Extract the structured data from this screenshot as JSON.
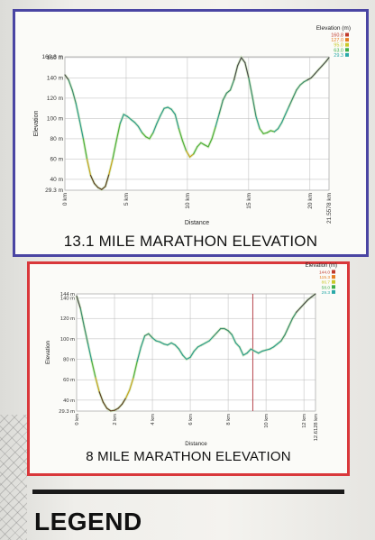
{
  "chart_data": [
    {
      "type": "line",
      "title": "13.1 MILE MARATHON ELEVATION",
      "xlabel": "Distance",
      "ylabel": "Elevation",
      "legend_title": "Elevation (m)",
      "legend_entries": [
        "160.8",
        "127.0",
        "95.0",
        "63.0",
        "29.3"
      ],
      "legend_colors": [
        "#c0392b",
        "#e67e22",
        "#c9c92a",
        "#3fae49",
        "#2aa9a9"
      ],
      "ylim": [
        29.3,
        160.8
      ],
      "xlim": [
        0,
        21.5578
      ],
      "yticks": [
        {
          "v": 29.3,
          "label": "29.3 m"
        },
        {
          "v": 40,
          "label": "40 m"
        },
        {
          "v": 60,
          "label": "60 m"
        },
        {
          "v": 80,
          "label": "80 m"
        },
        {
          "v": 100,
          "label": "100 m"
        },
        {
          "v": 120,
          "label": "120 m"
        },
        {
          "v": 140,
          "label": "140 m"
        },
        {
          "v": 160,
          "label": "160 m"
        },
        {
          "v": 160.8,
          "label": "160.8 m"
        }
      ],
      "xticks": [
        {
          "v": 0,
          "label": "0 km"
        },
        {
          "v": 5,
          "label": "5 km"
        },
        {
          "v": 10,
          "label": "10 km"
        },
        {
          "v": 15,
          "label": "15 km"
        },
        {
          "v": 20,
          "label": "20 km"
        },
        {
          "v": 21.5578,
          "label": "21.5578 km"
        }
      ],
      "x": [
        0,
        0.3,
        0.6,
        0.9,
        1.2,
        1.5,
        1.8,
        2.1,
        2.4,
        2.7,
        3.0,
        3.3,
        3.6,
        3.9,
        4.2,
        4.5,
        4.8,
        5.1,
        5.4,
        5.7,
        6.0,
        6.3,
        6.6,
        6.9,
        7.2,
        7.5,
        7.8,
        8.1,
        8.4,
        8.7,
        9.0,
        9.3,
        9.6,
        9.9,
        10.2,
        10.5,
        10.8,
        11.1,
        11.4,
        11.7,
        12.0,
        12.3,
        12.6,
        12.9,
        13.2,
        13.5,
        13.8,
        14.1,
        14.4,
        14.7,
        15.0,
        15.3,
        15.6,
        15.9,
        16.2,
        16.5,
        16.8,
        17.1,
        17.4,
        17.7,
        18.0,
        18.3,
        18.6,
        18.9,
        19.2,
        19.5,
        19.8,
        20.1,
        20.4,
        20.7,
        21.0,
        21.3,
        21.5578
      ],
      "y": [
        143,
        138,
        128,
        115,
        98,
        80,
        60,
        44,
        36,
        32,
        30,
        33,
        45,
        60,
        78,
        95,
        104,
        102,
        99,
        96,
        92,
        86,
        82,
        80,
        86,
        95,
        103,
        110,
        111,
        109,
        104,
        90,
        78,
        68,
        62,
        65,
        72,
        76,
        74,
        72,
        80,
        92,
        105,
        118,
        125,
        128,
        138,
        152,
        160,
        155,
        140,
        122,
        102,
        90,
        85,
        86,
        88,
        87,
        90,
        96,
        104,
        112,
        120,
        128,
        133,
        136,
        138,
        140,
        144,
        148,
        152,
        156,
        160
      ],
      "marker_x": null
    },
    {
      "type": "line",
      "title": "8 MILE MARATHON ELEVATION",
      "xlabel": "Distance",
      "ylabel": "Elevation",
      "legend_title": "Elevation (m)",
      "legend_entries": [
        "144.0",
        "115.3",
        "86.7",
        "58.0",
        "29.3"
      ],
      "legend_colors": [
        "#c0392b",
        "#e67e22",
        "#c9c92a",
        "#3fae49",
        "#2aa9a9"
      ],
      "ylim": [
        29.3,
        144
      ],
      "xlim": [
        0,
        12.6128
      ],
      "yticks": [
        {
          "v": 29.3,
          "label": "29.3 m"
        },
        {
          "v": 40,
          "label": "40 m"
        },
        {
          "v": 60,
          "label": "60 m"
        },
        {
          "v": 80,
          "label": "80 m"
        },
        {
          "v": 100,
          "label": "100 m"
        },
        {
          "v": 120,
          "label": "120 m"
        },
        {
          "v": 140,
          "label": "140 m"
        },
        {
          "v": 144,
          "label": "144 m"
        }
      ],
      "xticks": [
        {
          "v": 0,
          "label": "0 km"
        },
        {
          "v": 2,
          "label": "2 km"
        },
        {
          "v": 4,
          "label": "4 km"
        },
        {
          "v": 6,
          "label": "6 km"
        },
        {
          "v": 8,
          "label": "8 km"
        },
        {
          "v": 10,
          "label": "10 km"
        },
        {
          "v": 12,
          "label": "12 km"
        },
        {
          "v": 12.6128,
          "label": "12.6128 km"
        }
      ],
      "x": [
        0,
        0.2,
        0.4,
        0.6,
        0.8,
        1.0,
        1.2,
        1.4,
        1.6,
        1.8,
        2.0,
        2.2,
        2.4,
        2.6,
        2.8,
        3.0,
        3.2,
        3.4,
        3.6,
        3.8,
        4.0,
        4.2,
        4.4,
        4.6,
        4.8,
        5.0,
        5.2,
        5.4,
        5.6,
        5.8,
        6.0,
        6.2,
        6.4,
        6.6,
        6.8,
        7.0,
        7.2,
        7.4,
        7.6,
        7.8,
        8.0,
        8.2,
        8.4,
        8.6,
        8.8,
        9.0,
        9.2,
        9.4,
        9.6,
        9.8,
        10.0,
        10.2,
        10.4,
        10.6,
        10.8,
        11.0,
        11.2,
        11.4,
        11.6,
        11.8,
        12.0,
        12.2,
        12.4,
        12.6128
      ],
      "y": [
        142,
        130,
        112,
        95,
        78,
        62,
        48,
        38,
        32,
        29.5,
        30,
        32,
        36,
        42,
        50,
        62,
        78,
        92,
        103,
        105,
        101,
        98,
        97,
        95,
        94,
        96,
        94,
        90,
        84,
        80,
        82,
        88,
        92,
        94,
        96,
        98,
        102,
        106,
        110,
        110,
        108,
        104,
        96,
        92,
        84,
        86,
        90,
        88,
        86,
        88,
        89,
        90,
        92,
        95,
        98,
        104,
        112,
        120,
        126,
        130,
        134,
        138,
        141,
        144
      ],
      "marker_x": 9.3
    }
  ]
}
